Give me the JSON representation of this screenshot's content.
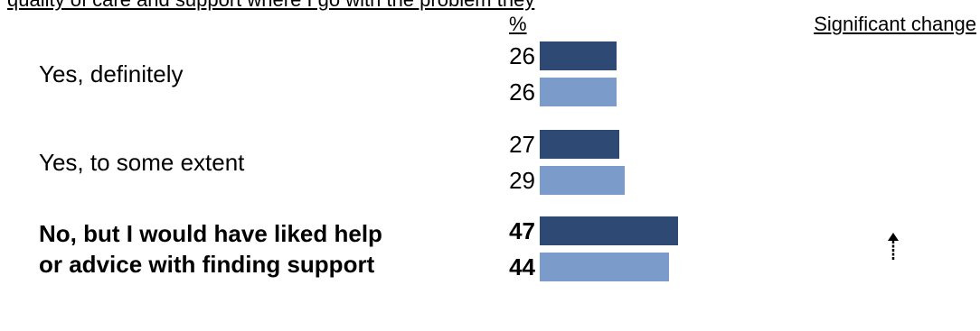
{
  "header_fragment": "quality of care and support where I go with the problem they",
  "column_headers": {
    "percent": "%",
    "significant_change": "Significant change"
  },
  "colors": {
    "series_dark": "#2e4a74",
    "series_light": "#7b9cca",
    "arrow": "#000000"
  },
  "chart_data": {
    "type": "bar",
    "orientation": "horizontal",
    "categories": [
      "Yes, definitely",
      "Yes, to some extent",
      "No, but I would have liked help or advice with finding support"
    ],
    "category_lines": [
      [
        "Yes, definitely"
      ],
      [
        "Yes, to some extent"
      ],
      [
        "No, but I would have liked help",
        "or advice with finding support"
      ]
    ],
    "bold_categories": [
      false,
      false,
      true
    ],
    "series": [
      {
        "values": [
          26,
          27,
          47
        ],
        "color": "#2e4a74"
      },
      {
        "values": [
          26,
          29,
          44
        ],
        "color": "#7b9cca"
      }
    ],
    "significant_change": [
      null,
      null,
      "up"
    ],
    "xlim": [
      0,
      100
    ],
    "grid": false,
    "legend": "none"
  }
}
